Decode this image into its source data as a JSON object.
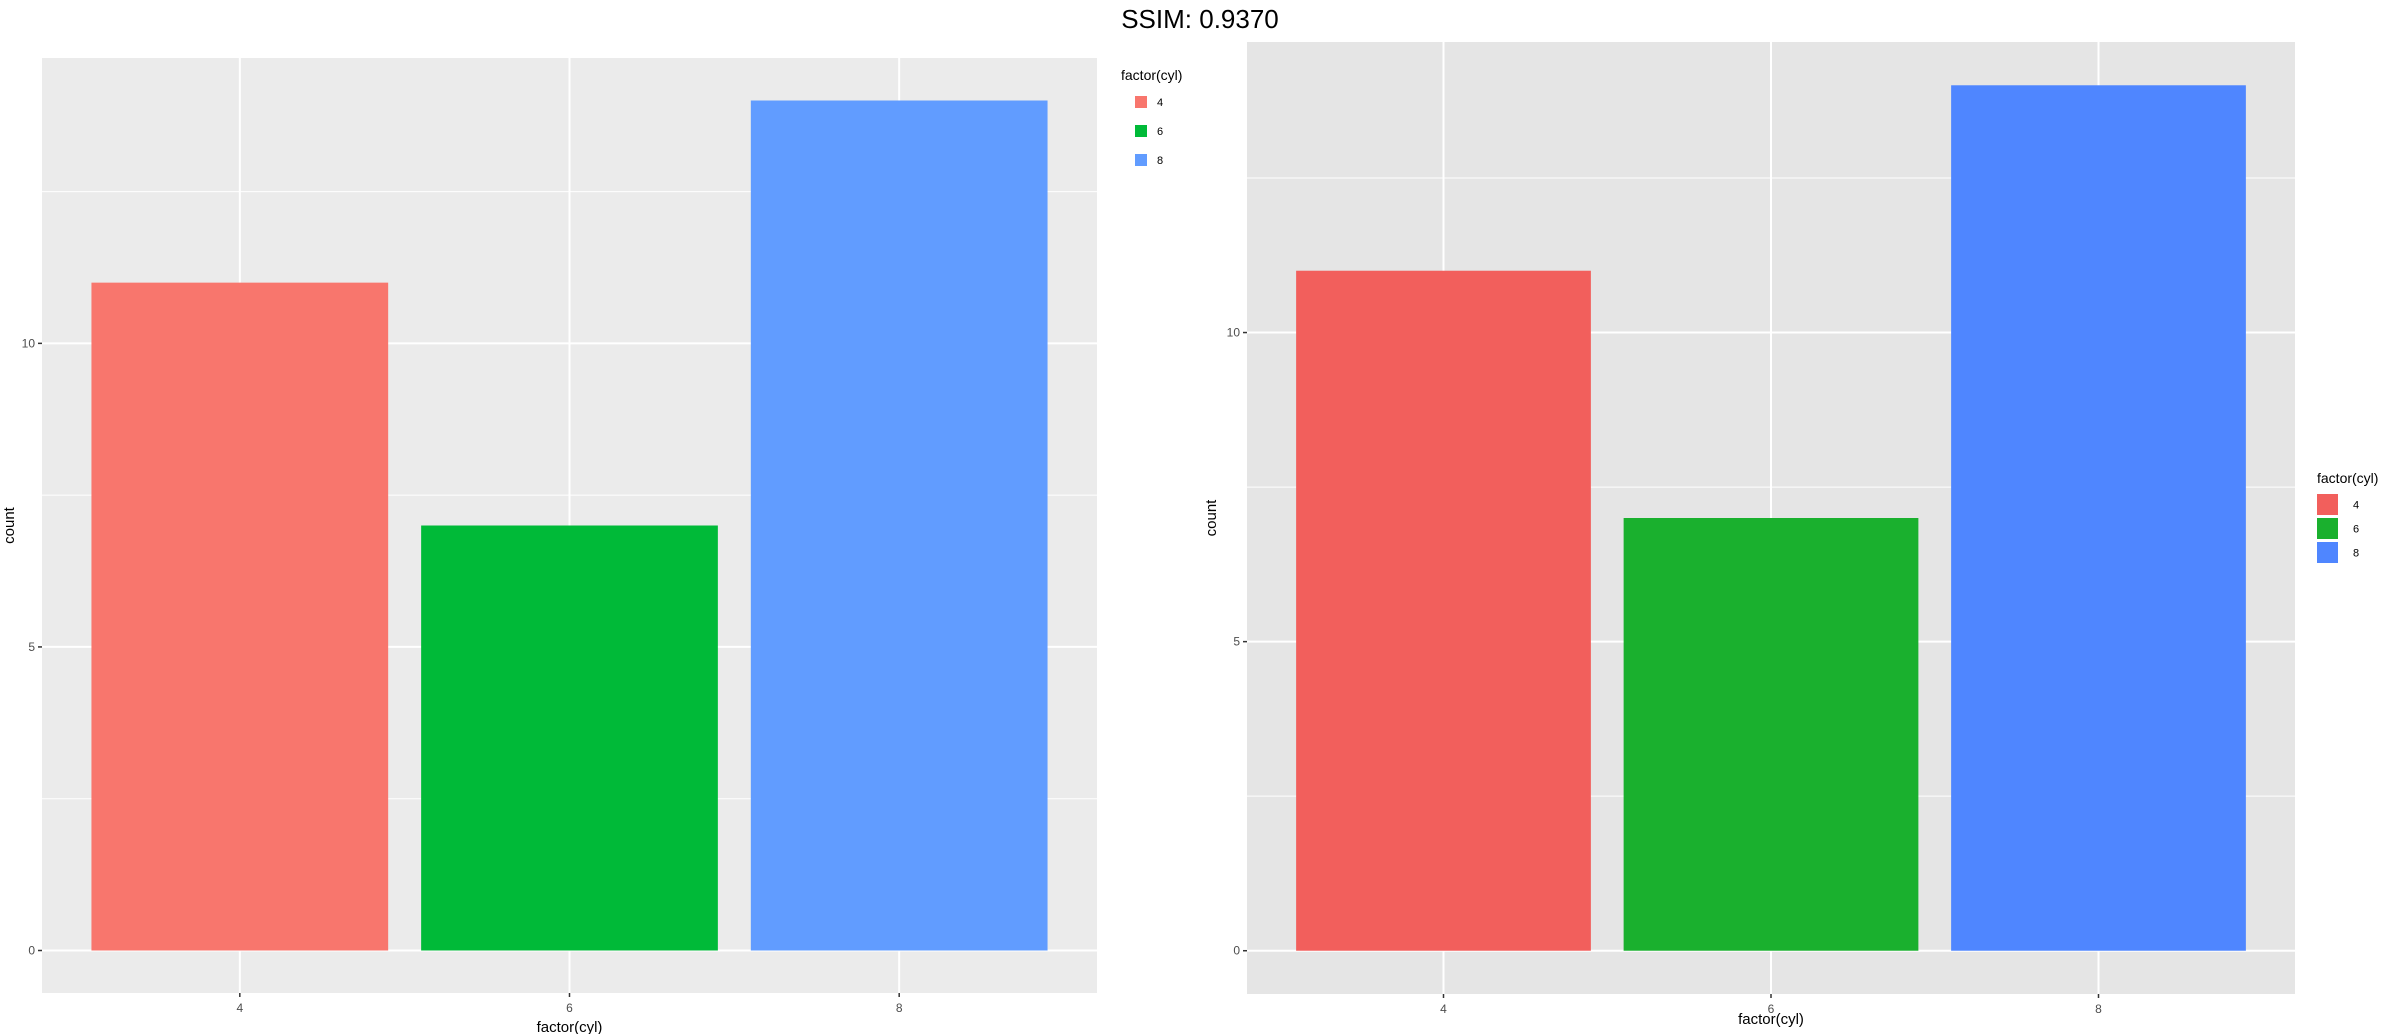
{
  "header": {
    "title": "SSIM: 0.9370"
  },
  "chart_data": [
    {
      "type": "bar",
      "categories": [
        "4",
        "6",
        "8"
      ],
      "values": [
        11,
        7,
        14
      ],
      "colors": [
        "#F8766D",
        "#00BA38",
        "#619CFF"
      ],
      "xlabel": "factor(cyl)",
      "ylabel": "count",
      "yticks": [
        0,
        5,
        10
      ],
      "ylim": [
        -0.7,
        14.7
      ],
      "grid": true,
      "legend": {
        "title": "factor(cyl)",
        "items": [
          "4",
          "6",
          "8"
        ],
        "position": "top-right"
      },
      "panel_bg": "#EBEBEB"
    },
    {
      "type": "bar",
      "categories": [
        "4",
        "6",
        "8"
      ],
      "values": [
        11,
        7,
        14
      ],
      "colors": [
        "#F25F5C",
        "#1AB02E",
        "#4F86FF"
      ],
      "xlabel": "factor(cyl)",
      "ylabel": "count",
      "yticks": [
        0,
        5,
        10
      ],
      "ylim": [
        -0.7,
        14.7
      ],
      "grid": true,
      "legend": {
        "title": "factor(cyl)",
        "items": [
          "4",
          "6",
          "8"
        ],
        "position": "right"
      },
      "panel_bg": "#E5E5E5"
    }
  ]
}
